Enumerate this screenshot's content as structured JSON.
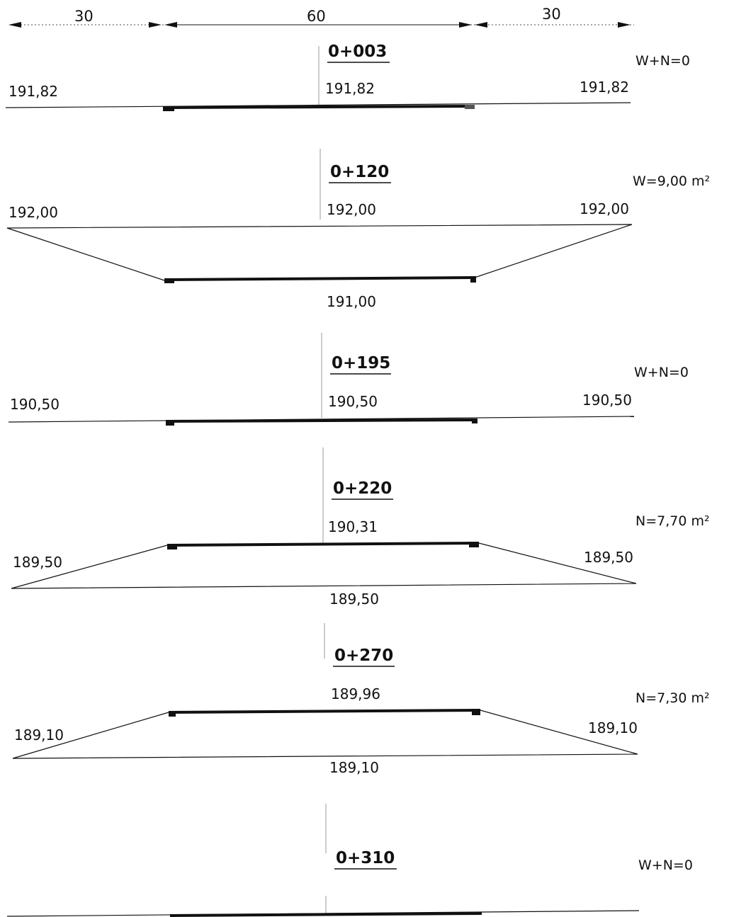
{
  "dimensions": [
    "30",
    "60",
    "30"
  ],
  "sections": [
    {
      "station": "0+003",
      "area_label": "W+N=0",
      "elev_left": "191,82",
      "elev_center": "191,82",
      "elev_right": "191,82"
    },
    {
      "station": "0+120",
      "area_label": "W=9,00 m²",
      "elev_left": "192,00",
      "elev_center": "192,00",
      "elev_right": "192,00",
      "elev_bottom": "191,00"
    },
    {
      "station": "0+195",
      "area_label": "W+N=0",
      "elev_left": "190,50",
      "elev_center": "190,50",
      "elev_right": "190,50"
    },
    {
      "station": "0+220",
      "area_label": "N=7,70 m²",
      "elev_left": "189,50",
      "elev_center": "190,31",
      "elev_right": "189,50",
      "elev_bottom": "189,50"
    },
    {
      "station": "0+270",
      "area_label": "N=7,30 m²",
      "elev_left": "189,10",
      "elev_center": "189,96",
      "elev_right": "189,10",
      "elev_bottom": "189,10"
    },
    {
      "station": "0+310",
      "area_label": "W+N=0"
    }
  ]
}
